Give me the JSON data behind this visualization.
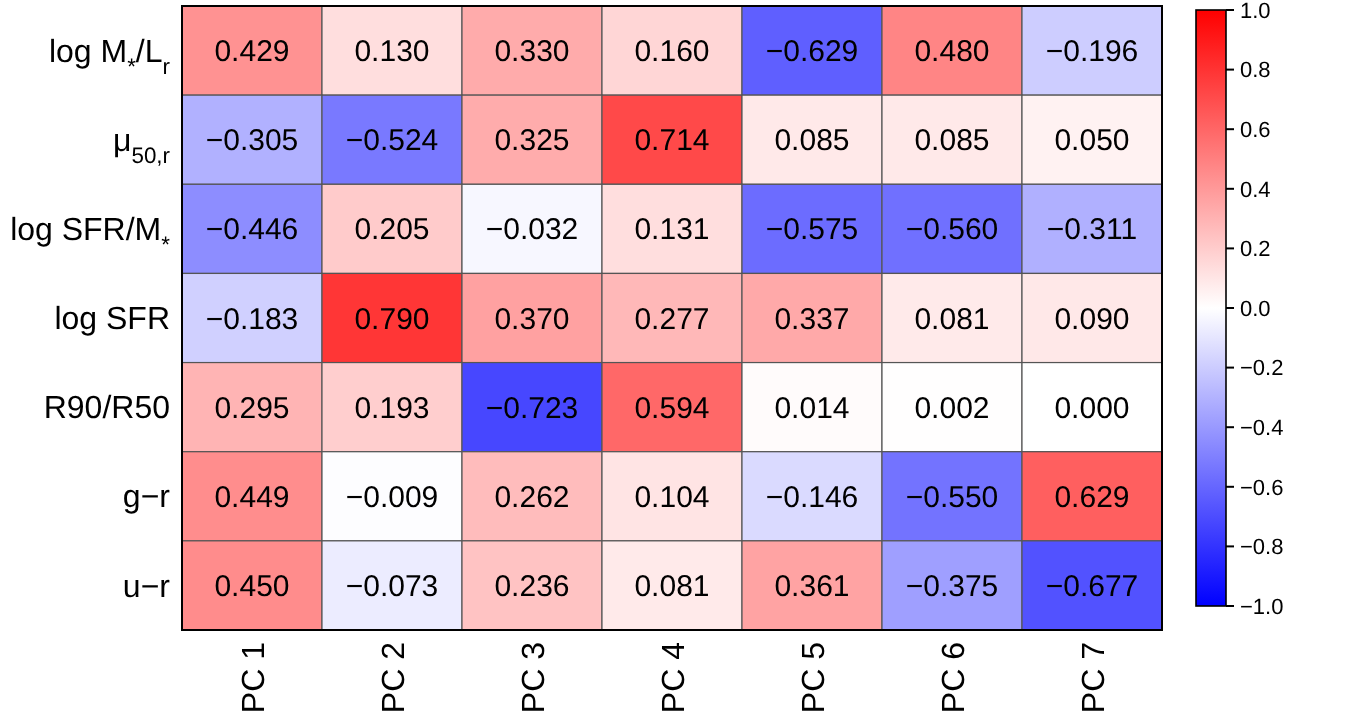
{
  "chart_data": {
    "type": "heatmap",
    "categories": [
      "PC 1",
      "PC 2",
      "PC 3",
      "PC 4",
      "PC 5",
      "PC 6",
      "PC 7"
    ],
    "y_categories": [
      "log M$_{*}$/L$_{r}$",
      "μ$_{50,r}$",
      "log SFR/M$_{*}$",
      "log SFR",
      "R90/R50",
      "g−r",
      "u−r"
    ],
    "cells": [
      [
        0.429,
        0.13,
        0.33,
        0.16,
        -0.629,
        0.48,
        -0.196
      ],
      [
        -0.305,
        -0.524,
        0.325,
        0.714,
        0.085,
        0.085,
        0.05
      ],
      [
        -0.446,
        0.205,
        -0.032,
        0.131,
        -0.575,
        -0.56,
        -0.311
      ],
      [
        -0.183,
        0.79,
        0.37,
        0.277,
        0.337,
        0.081,
        0.09
      ],
      [
        0.295,
        0.193,
        -0.723,
        0.594,
        0.014,
        0.002,
        0.0
      ],
      [
        0.449,
        -0.009,
        0.262,
        0.104,
        -0.146,
        -0.55,
        0.629
      ],
      [
        0.45,
        -0.073,
        0.236,
        0.081,
        0.361,
        -0.375,
        -0.677
      ]
    ],
    "cell_labels": [
      [
        "0.429",
        "0.130",
        "0.330",
        "0.160",
        "−0.629",
        "0.480",
        "−0.196"
      ],
      [
        "−0.305",
        "−0.524",
        "0.325",
        "0.714",
        "0.085",
        "0.085",
        "0.050"
      ],
      [
        "−0.446",
        "0.205",
        "−0.032",
        "0.131",
        "−0.575",
        "−0.560",
        "−0.311"
      ],
      [
        "−0.183",
        "0.790",
        "0.370",
        "0.277",
        "0.337",
        "0.081",
        "0.090"
      ],
      [
        "0.295",
        "0.193",
        "−0.723",
        "0.594",
        "0.014",
        "0.002",
        "0.000"
      ],
      [
        "0.449",
        "−0.009",
        "0.262",
        "0.104",
        "−0.146",
        "−0.550",
        "0.629"
      ],
      [
        "0.450",
        "−0.073",
        "0.236",
        "0.081",
        "0.361",
        "−0.375",
        "−0.677"
      ]
    ],
    "clim": [
      -1,
      1
    ],
    "cticks": [
      {
        "value": -1,
        "label": "−1.0"
      },
      {
        "value": -0.8,
        "label": "−0.8"
      },
      {
        "value": -0.6,
        "label": "−0.6"
      },
      {
        "value": -0.4,
        "label": "−0.4"
      },
      {
        "value": -0.2,
        "label": "−0.2"
      },
      {
        "value": 0,
        "label": "0.0"
      },
      {
        "value": 0.2,
        "label": "0.2"
      },
      {
        "value": 0.4,
        "label": "0.4"
      },
      {
        "value": 0.6,
        "label": "0.6"
      },
      {
        "value": 0.8,
        "label": "0.8"
      },
      {
        "value": 1,
        "label": "1.0"
      }
    ]
  }
}
